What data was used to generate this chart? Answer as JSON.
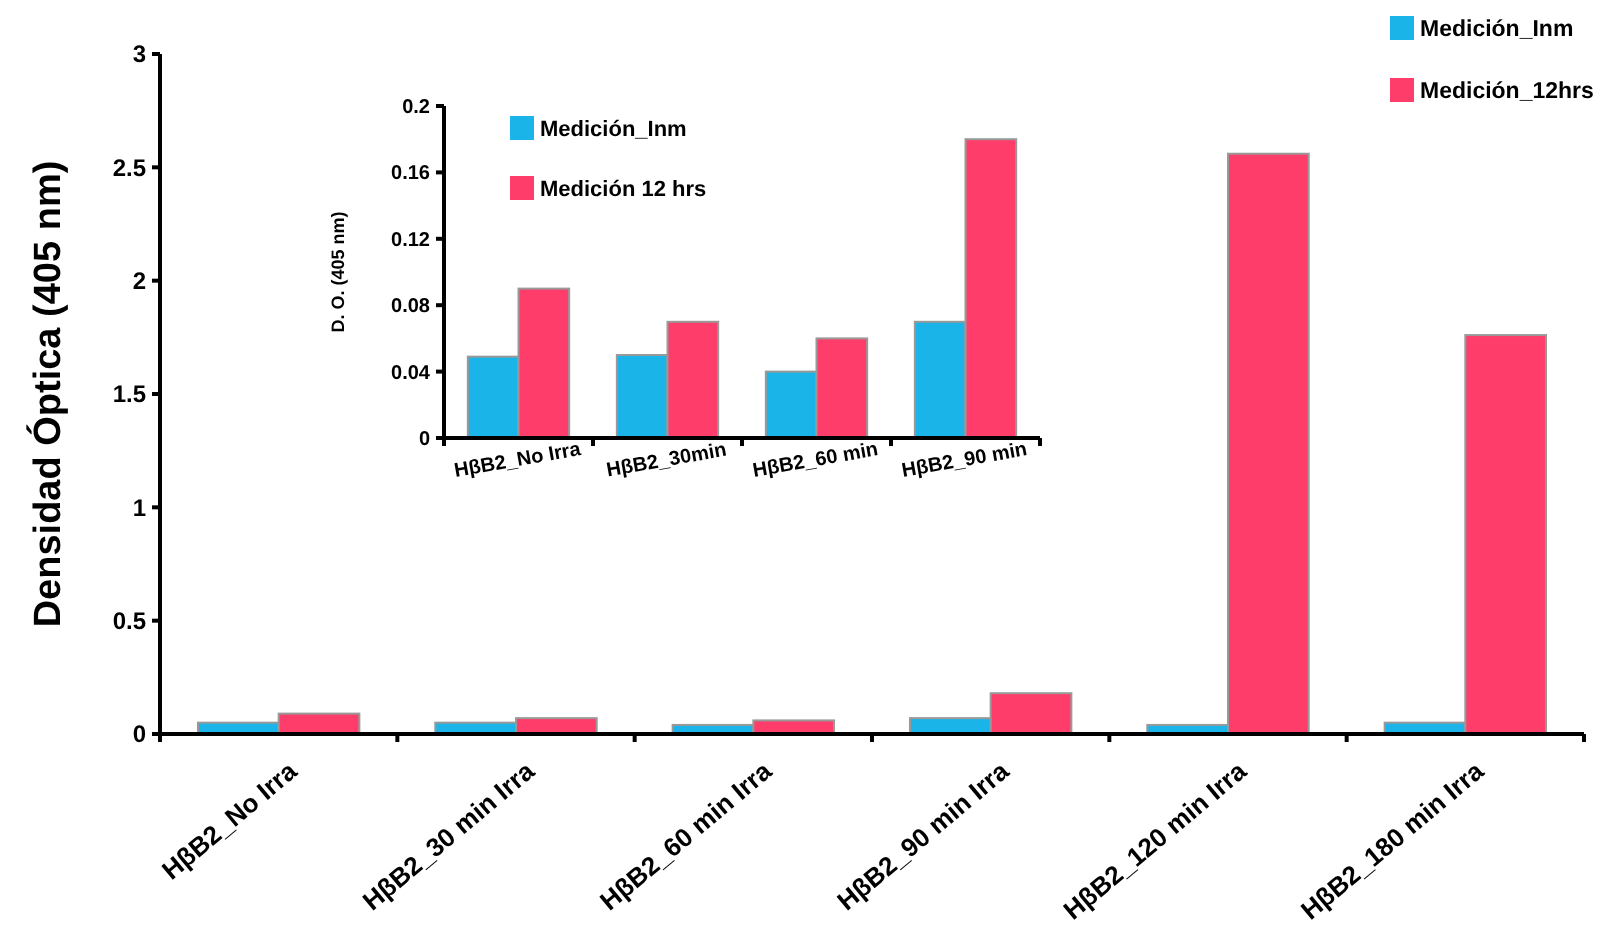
{
  "chart_data": [
    {
      "type": "bar",
      "ylabel": "Densidad Óptica (405 nm)",
      "categories": [
        "HβB2_No Irra",
        "HβB2_30 min Irra",
        "HβB2_60 min Irra",
        "HβB2_90 min Irra",
        "HβB2_120 min Irra",
        "HβB2_180 min Irra"
      ],
      "series": [
        {
          "name": "Medición_Inm",
          "color": "#1ab4e8",
          "values": [
            0.05,
            0.05,
            0.04,
            0.07,
            0.04,
            0.05
          ]
        },
        {
          "name": "Medición_12hrs",
          "color": "#ff3d6a",
          "values": [
            0.09,
            0.07,
            0.06,
            0.18,
            2.56,
            1.76
          ]
        }
      ],
      "ylim": [
        0,
        3
      ],
      "yticks": [
        0,
        0.5,
        1,
        1.5,
        2,
        2.5,
        3
      ],
      "grid": false,
      "legend": "top right"
    },
    {
      "type": "bar",
      "ylabel": "D. O. (405 nm)",
      "categories": [
        "HβB2_No Irra",
        "HβB2_30min",
        "HβB2_60 min",
        "HβB2_90 min"
      ],
      "series": [
        {
          "name": "Medición_Inm",
          "color": "#1ab4e8",
          "values": [
            0.049,
            0.05,
            0.04,
            0.07
          ]
        },
        {
          "name": "Medición  12 hrs",
          "color": "#ff3d6a",
          "values": [
            0.09,
            0.07,
            0.06,
            0.18
          ]
        }
      ],
      "ylim": [
        0,
        0.2
      ],
      "yticks": [
        0,
        0.04,
        0.08,
        0.12,
        0.16,
        0.2
      ],
      "grid": false,
      "legend": "top left"
    }
  ]
}
